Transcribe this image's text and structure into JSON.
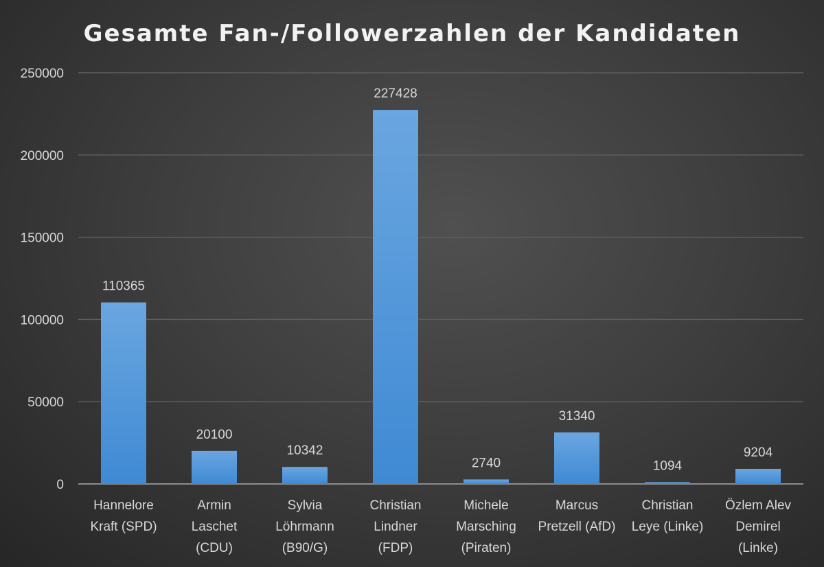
{
  "chart_data": {
    "type": "bar",
    "title": "Gesamte Fan-/Followerzahlen der Kandidaten",
    "xlabel": "",
    "ylabel": "",
    "ylim": [
      0,
      250000
    ],
    "yticks": [
      "0",
      "50000",
      "100000",
      "150000",
      "200000",
      "250000"
    ],
    "grid": true,
    "legend": "none",
    "bar_color": "#5b9bd5",
    "categories": [
      [
        "Hannelore",
        "Kraft (SPD)"
      ],
      [
        "Armin",
        "Laschet",
        "(CDU)"
      ],
      [
        "Sylvia",
        "Löhrmann",
        "(B90/G)"
      ],
      [
        "Christian",
        "Lindner",
        "(FDP)"
      ],
      [
        "Michele",
        "Marsching",
        "(Piraten)"
      ],
      [
        "Marcus",
        "Pretzell (AfD)"
      ],
      [
        "Christian",
        "Leye (Linke)"
      ],
      [
        "Özlem Alev",
        "Demirel",
        "(Linke)"
      ]
    ],
    "values": [
      110365,
      20100,
      10342,
      227428,
      2740,
      31340,
      1094,
      9204
    ]
  }
}
